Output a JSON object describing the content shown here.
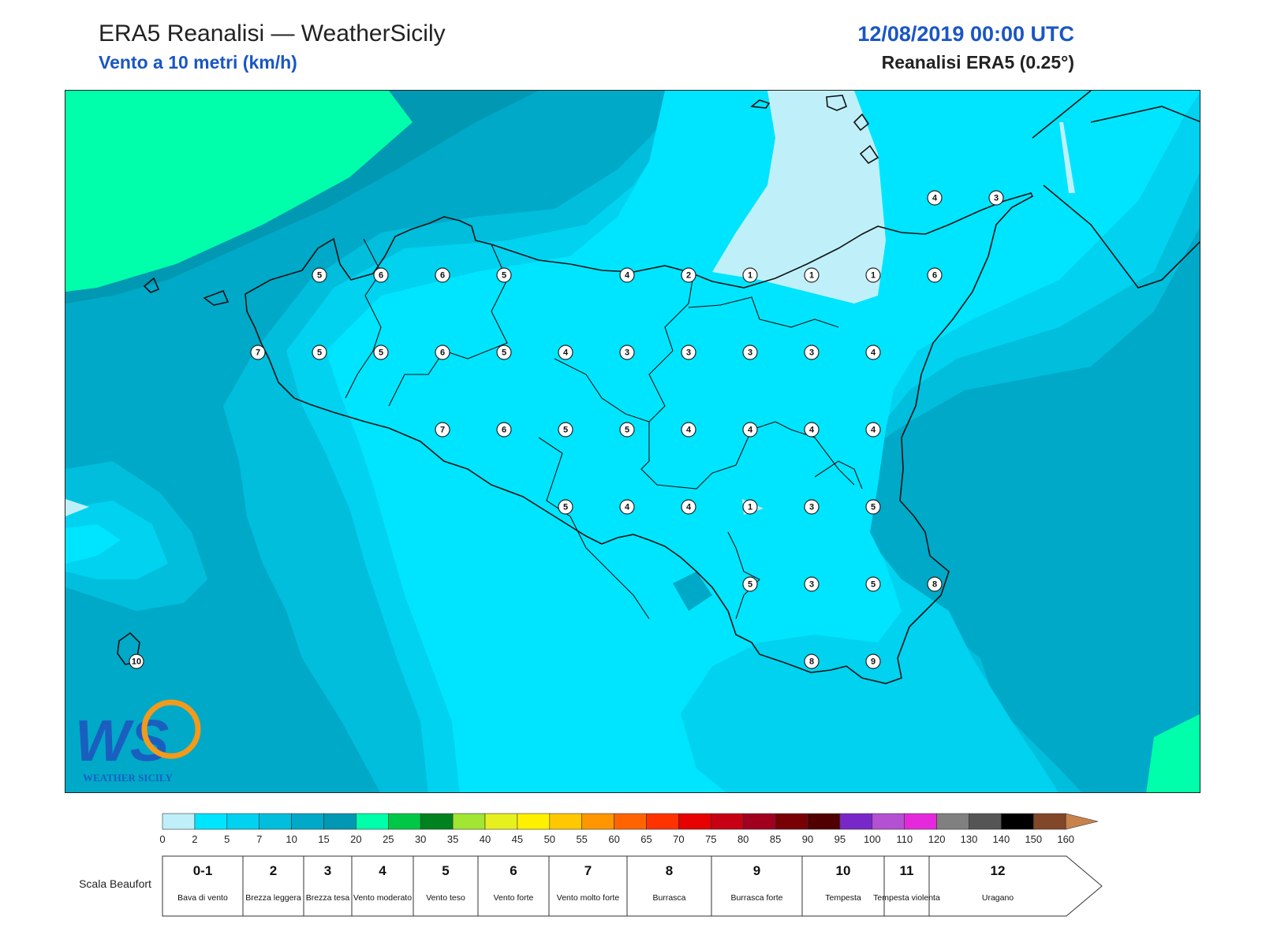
{
  "header": {
    "title": "ERA5 Reanalisi — WeatherSicily",
    "subtitle": "Vento a 10 metri (km/h)",
    "date": "12/08/2019 00:00 UTC",
    "source": "Reanalisi ERA5 (0.25°)"
  },
  "logo": {
    "text": "WS",
    "caption": "WEATHER SICILY"
  },
  "colors": {
    "z0": "#bff0fa",
    "z1": "#00e5ff",
    "z2": "#00d2f0",
    "z3": "#00bedc",
    "z4": "#00a9c8",
    "z5": "#0098b2",
    "z6": "#00ffaa"
  },
  "stations": [
    {
      "v": "5",
      "c": "r1c1"
    },
    {
      "v": "6",
      "c": "r1c2"
    },
    {
      "v": "6",
      "c": "r1c3"
    },
    {
      "v": "5",
      "c": "r1c4"
    },
    {
      "v": "4",
      "c": "r1c6"
    },
    {
      "v": "2",
      "c": "r1c7"
    },
    {
      "v": "1",
      "c": "r1c8"
    },
    {
      "v": "1",
      "c": "r1c9"
    },
    {
      "v": "1",
      "c": "r1c10"
    },
    {
      "v": "6",
      "c": "r1c11"
    },
    {
      "v": "7",
      "c": "r2c0"
    },
    {
      "v": "5",
      "c": "r2c1"
    },
    {
      "v": "5",
      "c": "r2c2"
    },
    {
      "v": "6",
      "c": "r2c3"
    },
    {
      "v": "5",
      "c": "r2c4"
    },
    {
      "v": "4",
      "c": "r2c5"
    },
    {
      "v": "3",
      "c": "r2c6"
    },
    {
      "v": "3",
      "c": "r2c7"
    },
    {
      "v": "3",
      "c": "r2c8"
    },
    {
      "v": "3",
      "c": "r2c9"
    },
    {
      "v": "4",
      "c": "r2c10"
    },
    {
      "v": "7",
      "c": "r3c3"
    },
    {
      "v": "6",
      "c": "r3c4"
    },
    {
      "v": "5",
      "c": "r3c5"
    },
    {
      "v": "5",
      "c": "r3c6"
    },
    {
      "v": "4",
      "c": "r3c7"
    },
    {
      "v": "4",
      "c": "r3c8"
    },
    {
      "v": "4",
      "c": "r3c9"
    },
    {
      "v": "4",
      "c": "r3c10"
    },
    {
      "v": "5",
      "c": "r4c5"
    },
    {
      "v": "4",
      "c": "r4c6"
    },
    {
      "v": "4",
      "c": "r4c7"
    },
    {
      "v": "1",
      "c": "r4c8"
    },
    {
      "v": "3",
      "c": "r4c9"
    },
    {
      "v": "5",
      "c": "r4c10"
    },
    {
      "v": "5",
      "c": "r5c8"
    },
    {
      "v": "3",
      "c": "r5c9"
    },
    {
      "v": "5",
      "c": "r5c10"
    },
    {
      "v": "8",
      "c": "r5c11"
    },
    {
      "v": "8",
      "c": "r6c9"
    },
    {
      "v": "9",
      "c": "r6c10"
    },
    {
      "v": "4",
      "c": "r0c11"
    },
    {
      "v": "3",
      "c": "r0c12"
    },
    {
      "v": "10",
      "c": "r6cU"
    }
  ],
  "colorbar": {
    "ticks": [
      "0",
      "2",
      "5",
      "7",
      "10",
      "15",
      "20",
      "25",
      "30",
      "35",
      "40",
      "45",
      "50",
      "55",
      "60",
      "65",
      "70",
      "75",
      "80",
      "85",
      "90",
      "95",
      "100",
      "110",
      "120",
      "130",
      "140",
      "150",
      "160"
    ],
    "colors": [
      "#bff0fa",
      "#00e5ff",
      "#00d2f0",
      "#00bedc",
      "#00a9c8",
      "#0098b2",
      "#00ffaa",
      "#00c846",
      "#00821e",
      "#a0e632",
      "#e6f01e",
      "#fff000",
      "#ffc800",
      "#ff9600",
      "#ff6400",
      "#ff3200",
      "#e60000",
      "#c80014",
      "#a0001e",
      "#780005",
      "#500000",
      "#7828c8",
      "#b450d2",
      "#e628dc",
      "#808080",
      "#555555",
      "#000000",
      "#824628",
      "#c8824b"
    ]
  },
  "beaufort": {
    "label": "Scala Beaufort",
    "classes": [
      {
        "n": "0-1",
        "desc": "Bava di vento"
      },
      {
        "n": "2",
        "desc": "Brezza leggera"
      },
      {
        "n": "3",
        "desc": "Brezza tesa"
      },
      {
        "n": "4",
        "desc": "Vento moderato"
      },
      {
        "n": "5",
        "desc": "Vento teso"
      },
      {
        "n": "6",
        "desc": "Vento forte"
      },
      {
        "n": "7",
        "desc": "Vento molto forte"
      },
      {
        "n": "8",
        "desc": "Burrasca"
      },
      {
        "n": "9",
        "desc": "Burrasca forte"
      },
      {
        "n": "10",
        "desc": "Tempesta"
      },
      {
        "n": "11",
        "desc": "Tempesta violenta"
      },
      {
        "n": "12",
        "desc": "Uragano"
      }
    ]
  }
}
